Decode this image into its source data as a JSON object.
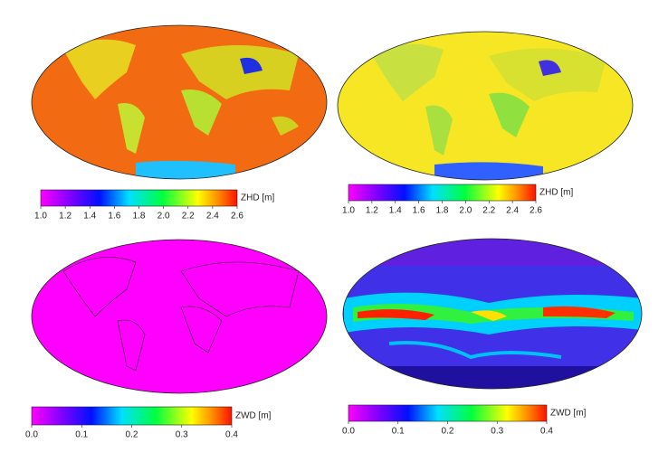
{
  "colorbars": [
    {
      "label": "ZHD [m]",
      "lim": [
        1,
        2.6
      ],
      "ticks": [
        {
          "value": 1,
          "label": "1.0"
        },
        1.2,
        1.4,
        1.6,
        1.8,
        {
          "value": 2,
          "label": "2.0"
        },
        2.2,
        2.4,
        2.6
      ]
    },
    {
      "label": "ZHD [m]",
      "lim": [
        1,
        2.6
      ],
      "ticks": [
        {
          "value": 1,
          "label": "1.0"
        },
        1.2,
        1.4,
        1.6,
        1.8,
        {
          "value": 2,
          "label": "2.0"
        },
        2.2,
        2.4,
        2.6
      ]
    },
    {
      "label": "ZWD [m]",
      "lim": [
        0,
        0.4
      ],
      "ticks": [
        {
          "value": 0,
          "label": "0.0"
        },
        0.1,
        0.2,
        0.3,
        0.4
      ]
    },
    {
      "label": "ZWD [m]",
      "lim": [
        0,
        0.4
      ],
      "ticks": [
        {
          "value": 0,
          "label": "0.0"
        },
        0.1,
        0.2,
        0.3,
        0.4
      ]
    }
  ]
}
